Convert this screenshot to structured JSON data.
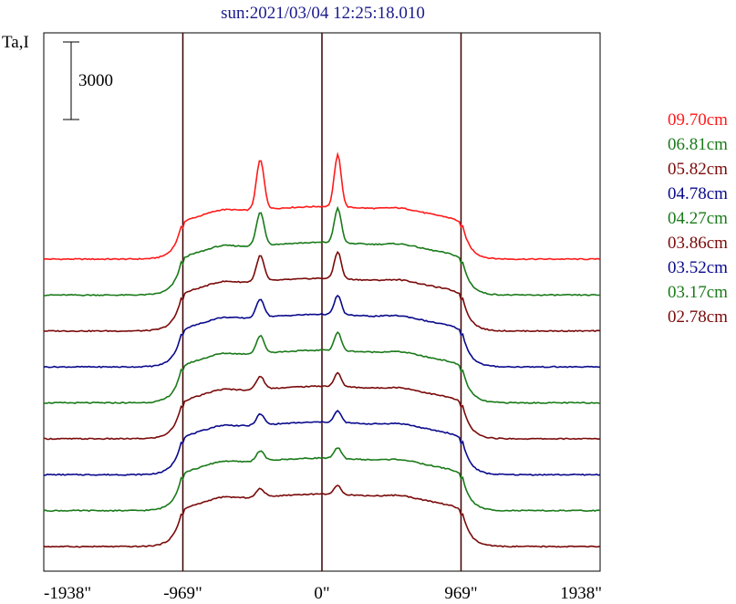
{
  "chart_data": {
    "type": "line",
    "title": "sun:2021/03/04 12:25:18.010",
    "ylabel": "Ta,I",
    "scale_bar_label": "3000",
    "x_ticks": [
      {
        "value": -1938,
        "label": "-1938\""
      },
      {
        "value": -969,
        "label": "-969\""
      },
      {
        "value": 0,
        "label": "0\""
      },
      {
        "value": 969,
        "label": "969\""
      },
      {
        "value": 1938,
        "label": "1938\""
      }
    ],
    "xlim": [
      -1938,
      1938
    ],
    "vertical_lines": [
      -969,
      0,
      969
    ],
    "stack_spacing": 1000,
    "series": [
      {
        "name": "09.70cm",
        "color": "#ff1a1a",
        "amp": 3000,
        "peak": 2700
      },
      {
        "name": "06.81cm",
        "color": "#1a7a1a",
        "amp": 3000,
        "peak": 1800
      },
      {
        "name": "05.82cm",
        "color": "#7a0a0a",
        "amp": 3000,
        "peak": 1400
      },
      {
        "name": "04.78cm",
        "color": "#0a0a8c",
        "amp": 3000,
        "peak": 1000
      },
      {
        "name": "04.27cm",
        "color": "#1a7a1a",
        "amp": 3000,
        "peak": 950
      },
      {
        "name": "03.86cm",
        "color": "#7a0a0a",
        "amp": 3000,
        "peak": 700
      },
      {
        "name": "03.52cm",
        "color": "#0a0a8c",
        "amp": 3000,
        "peak": 600
      },
      {
        "name": "03.17cm",
        "color": "#1a7a1a",
        "amp": 3000,
        "peak": 550
      },
      {
        "name": "02.78cm",
        "color": "#7a0a0a",
        "amp": 3000,
        "peak": 450
      }
    ]
  }
}
